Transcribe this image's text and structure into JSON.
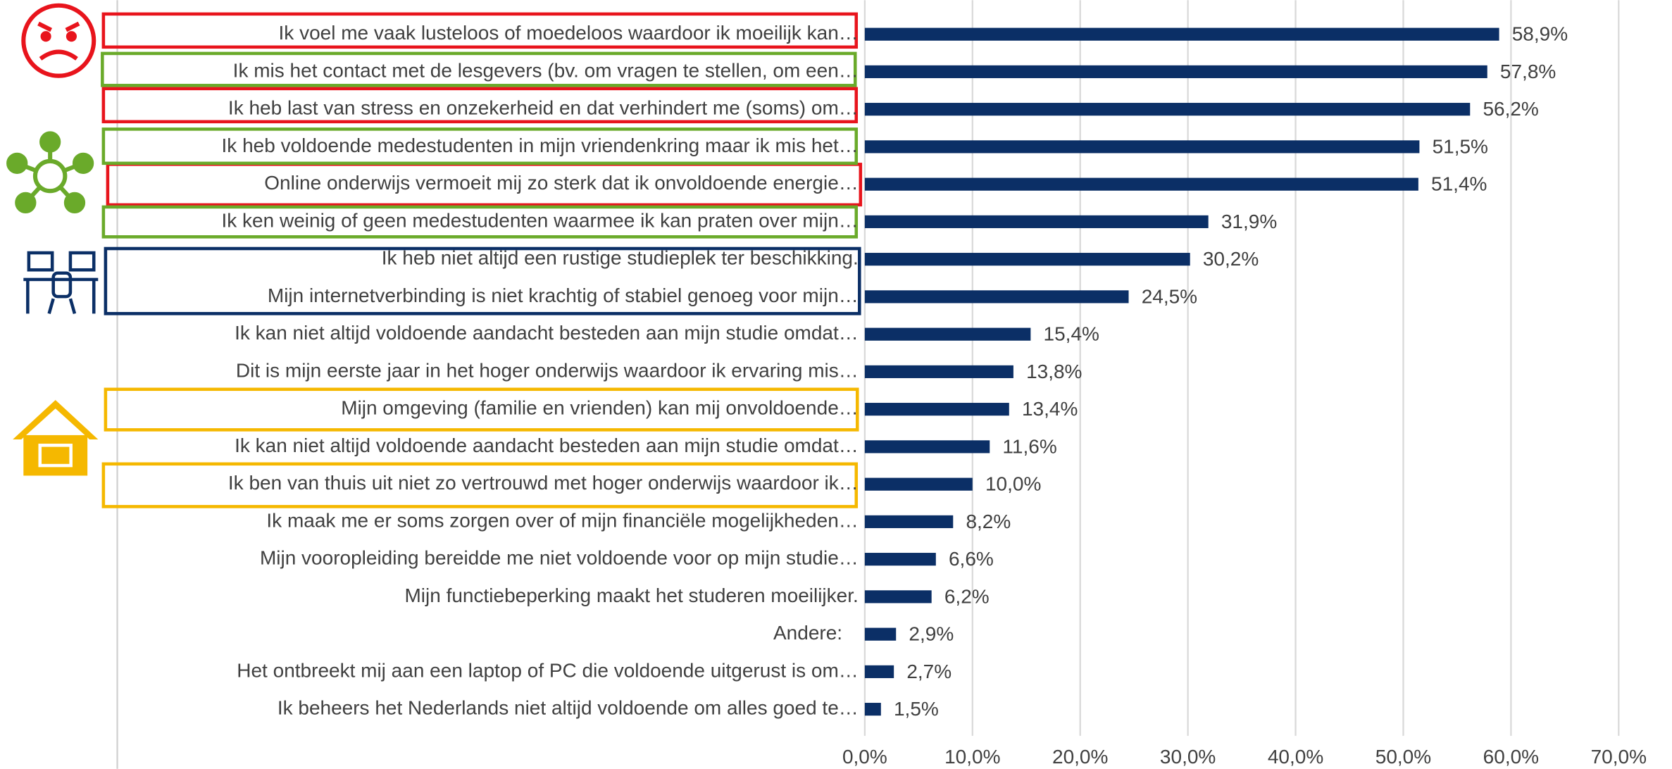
{
  "chart_data": {
    "type": "bar",
    "orientation": "horizontal",
    "categories": [
      "Ik voel me vaak lusteloos of moedeloos waardoor ik moeilijk kan…",
      "Ik mis het contact met de lesgevers (bv. om vragen te stellen, om een…",
      "Ik heb last van stress en onzekerheid en dat verhindert me (soms) om…",
      "Ik heb voldoende medestudenten in mijn vriendenkring maar ik mis het…",
      "Online onderwijs vermoeit mij zo sterk dat ik onvoldoende energie…",
      "Ik ken weinig of geen medestudenten waarmee ik kan praten over mijn…",
      "Ik heb niet altijd een rustige studieplek ter beschikking.",
      "Mijn internetverbinding is niet krachtig of stabiel genoeg voor mijn…",
      "Ik kan niet altijd voldoende aandacht besteden aan mijn studie omdat…",
      "Dit is mijn eerste jaar in het hoger onderwijs waardoor ik ervaring mis…",
      "Mijn omgeving (familie en vrienden) kan mij onvoldoende…",
      "Ik kan niet altijd voldoende aandacht besteden aan mijn studie omdat…",
      "Ik ben van thuis uit niet zo vertrouwd met hoger onderwijs waardoor ik…",
      "Ik maak me er soms zorgen over of mijn financiële mogelijkheden…",
      "Mijn vooropleiding bereidde me niet voldoende voor op mijn studie…",
      "Mijn functiebeperking maakt het studeren moeilijker.",
      "Andere:",
      "Het ontbreekt mij aan een laptop of PC die voldoende uitgerust is om…",
      "Ik beheers het Nederlands niet altijd voldoende om alles goed te…"
    ],
    "values": [
      58.9,
      57.8,
      56.2,
      51.5,
      51.4,
      31.9,
      30.2,
      24.5,
      15.4,
      13.8,
      13.4,
      11.6,
      10.0,
      8.2,
      6.6,
      6.2,
      2.9,
      2.7,
      1.5
    ],
    "value_labels": [
      "58,9%",
      "57,8%",
      "56,2%",
      "51,5%",
      "51,4%",
      "31,9%",
      "30,2%",
      "24,5%",
      "15,4%",
      "13,8%",
      "13,4%",
      "11,6%",
      "10,0%",
      "8,2%",
      "6,6%",
      "6,2%",
      "2,9%",
      "2,7%",
      "1,5%"
    ],
    "color": "#0b2f66",
    "xlim": [
      0,
      70
    ],
    "xticks": [
      {
        "value": 0,
        "label": "0,0%"
      },
      {
        "value": 10,
        "label": "10,0%"
      },
      {
        "value": 20,
        "label": "20,0%"
      },
      {
        "value": 30,
        "label": "30,0%"
      },
      {
        "value": 40,
        "label": "40,0%"
      },
      {
        "value": 50,
        "label": "50,0%"
      },
      {
        "value": 60,
        "label": "60,0%"
      },
      {
        "value": 70,
        "label": "70,0%"
      }
    ],
    "grid": true
  }
}
